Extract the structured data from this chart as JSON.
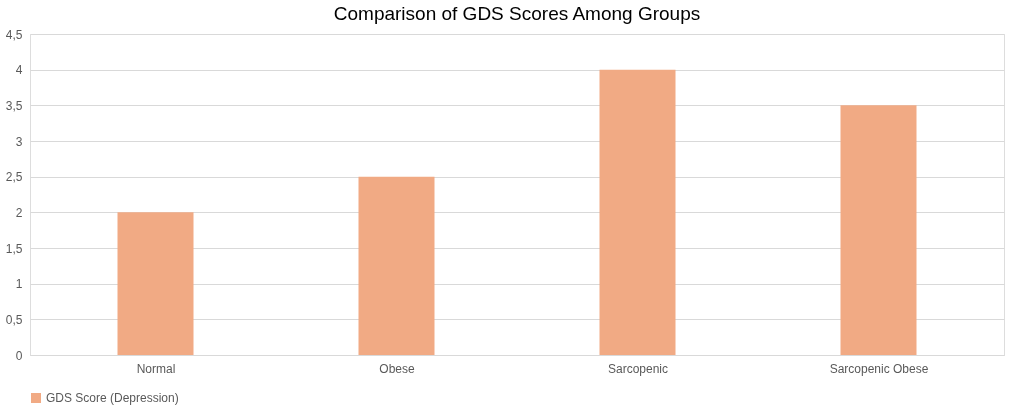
{
  "chart_data": {
    "type": "bar",
    "title": "Comparison of GDS Scores Among Groups",
    "categories": [
      "Normal",
      "Obese",
      "Sarcopenic",
      "Sarcopenic Obese"
    ],
    "series": [
      {
        "name": "GDS Score (Depression)",
        "color": "#f1aa84",
        "values": [
          2,
          2.5,
          4,
          3.5
        ]
      }
    ],
    "ylim": [
      0,
      4.5
    ],
    "yticks": [
      0,
      {
        "value": 0.5,
        "label": "0,5"
      },
      1,
      {
        "value": 1.5,
        "label": "1,5"
      },
      2,
      {
        "value": 2.5,
        "label": "2,5"
      },
      3,
      {
        "value": 3.5,
        "label": "3,5"
      },
      4,
      {
        "value": 4.5,
        "label": "4,5"
      }
    ],
    "grid": "y",
    "legend": "bottom"
  }
}
